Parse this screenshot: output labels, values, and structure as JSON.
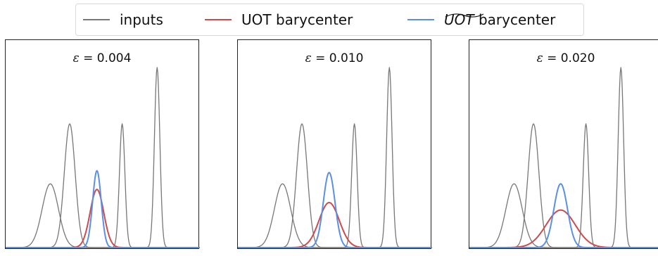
{
  "legend": {
    "items": [
      {
        "label_main": "inputs",
        "color": "#777777"
      },
      {
        "label_main": "UOT barycenter",
        "color": "#cc4b4b"
      },
      {
        "label_tilde": "UOT",
        "label_main": "barycenter",
        "color": "#5b8fe6"
      }
    ]
  },
  "chart_data": [
    {
      "type": "line",
      "title": "ε = 0.004",
      "title_symbol": "ε",
      "title_value": "= 0.004",
      "xlim": [
        0,
        1
      ],
      "ylim": [
        0,
        1.05
      ],
      "grid": false,
      "series": [
        {
          "name": "inputs",
          "color": "#777777",
          "peaks": [
            {
              "mu": 0.23,
              "sigma": 0.042,
              "height": 0.34
            },
            {
              "mu": 0.33,
              "sigma": 0.028,
              "height": 0.66
            },
            {
              "mu": 0.6,
              "sigma": 0.014,
              "height": 0.66
            },
            {
              "mu": 0.78,
              "sigma": 0.014,
              "height": 0.96
            }
          ]
        },
        {
          "name": "UOT barycenter",
          "color": "#cc4b4b",
          "peaks": [
            {
              "mu": 0.47,
              "sigma": 0.035,
              "height": 0.31
            }
          ]
        },
        {
          "name": "UOT~ barycenter",
          "color": "#5b8fe6",
          "peaks": [
            {
              "mu": 0.47,
              "sigma": 0.022,
              "height": 0.41
            }
          ]
        }
      ]
    },
    {
      "type": "line",
      "title": "ε = 0.010",
      "title_symbol": "ε",
      "title_value": "= 0.010",
      "xlim": [
        0,
        1
      ],
      "ylim": [
        0,
        1.05
      ],
      "grid": false,
      "series": [
        {
          "name": "inputs",
          "color": "#777777",
          "peaks": [
            {
              "mu": 0.23,
              "sigma": 0.042,
              "height": 0.34
            },
            {
              "mu": 0.33,
              "sigma": 0.028,
              "height": 0.66
            },
            {
              "mu": 0.6,
              "sigma": 0.014,
              "height": 0.66
            },
            {
              "mu": 0.78,
              "sigma": 0.014,
              "height": 0.96
            }
          ]
        },
        {
          "name": "UOT barycenter",
          "color": "#cc4b4b",
          "peaks": [
            {
              "mu": 0.47,
              "sigma": 0.052,
              "height": 0.24
            }
          ]
        },
        {
          "name": "UOT~ barycenter",
          "color": "#5b8fe6",
          "peaks": [
            {
              "mu": 0.47,
              "sigma": 0.03,
              "height": 0.4
            }
          ]
        }
      ]
    },
    {
      "type": "line",
      "title": "ε = 0.020",
      "title_symbol": "ε",
      "title_value": "= 0.020",
      "xlim": [
        0,
        1
      ],
      "ylim": [
        0,
        1.05
      ],
      "grid": false,
      "series": [
        {
          "name": "inputs",
          "color": "#777777",
          "peaks": [
            {
              "mu": 0.23,
              "sigma": 0.042,
              "height": 0.34
            },
            {
              "mu": 0.33,
              "sigma": 0.028,
              "height": 0.66
            },
            {
              "mu": 0.6,
              "sigma": 0.014,
              "height": 0.66
            },
            {
              "mu": 0.78,
              "sigma": 0.014,
              "height": 0.96
            }
          ]
        },
        {
          "name": "UOT barycenter",
          "color": "#cc4b4b",
          "peaks": [
            {
              "mu": 0.47,
              "sigma": 0.075,
              "height": 0.2
            }
          ]
        },
        {
          "name": "UOT~ barycenter",
          "color": "#5b8fe6",
          "peaks": [
            {
              "mu": 0.47,
              "sigma": 0.035,
              "height": 0.34
            }
          ]
        }
      ]
    }
  ]
}
